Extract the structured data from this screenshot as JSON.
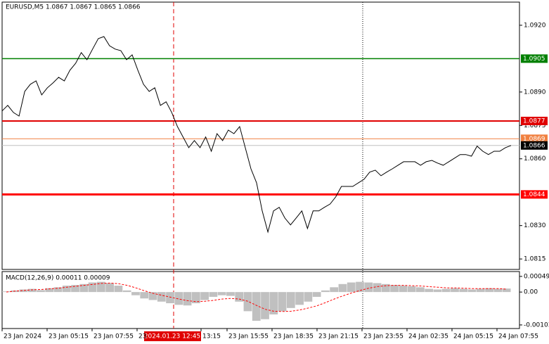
{
  "chart_data": {
    "type": "line",
    "title": "EURUSD,M5  1.0867 1.0867 1.0865 1.0866",
    "series": [
      {
        "name": "EURUSD",
        "color": "#000000",
        "values": [
          1.08815,
          1.0884,
          1.08808,
          1.08792,
          1.08903,
          1.08935,
          1.0895,
          1.08887,
          1.08919,
          1.08941,
          1.08966,
          1.0895,
          1.08998,
          1.09029,
          1.09077,
          1.09045,
          1.09093,
          1.0914,
          1.09149,
          1.09108,
          1.09093,
          1.09086,
          1.09045,
          1.09067,
          1.08998,
          1.08935,
          1.08903,
          1.08919,
          1.0884,
          1.08856,
          1.08808,
          1.08745,
          1.08698,
          1.0865,
          1.08682,
          1.0865,
          1.08698,
          1.08634,
          1.08713,
          1.08682,
          1.08729,
          1.08713,
          1.08745,
          1.0865,
          1.08555,
          1.08492,
          1.08366,
          1.08271,
          1.08366,
          1.08382,
          1.08334,
          1.08303,
          1.08334,
          1.08366,
          1.08287,
          1.08366,
          1.08366,
          1.08382,
          1.08397,
          1.08429,
          1.08476,
          1.08476,
          1.08476,
          1.08492,
          1.08508,
          1.0854,
          1.08549,
          1.08524,
          1.0854,
          1.08555,
          1.08571,
          1.08587,
          1.08587,
          1.08587,
          1.08571,
          1.08587,
          1.08593,
          1.08581,
          1.08571,
          1.08587,
          1.08603,
          1.08619,
          1.08619,
          1.08612,
          1.08657,
          1.08634,
          1.08619,
          1.08634,
          1.08634,
          1.0865,
          1.0866
        ]
      }
    ],
    "ylim": [
      1.08103,
      1.09304
    ],
    "yticks": [
      {
        "value": 1.092,
        "label": "1.0920"
      },
      {
        "value": 1.089,
        "label": "1.0890"
      },
      {
        "value": 1.0875,
        "label": "1.0875"
      },
      {
        "value": 1.086,
        "label": "1.0860"
      },
      {
        "value": 1.083,
        "label": "1.0830"
      },
      {
        "value": 1.0815,
        "label": "1.0815"
      }
    ],
    "levels": [
      {
        "value": 1.0905,
        "label": "1.0905",
        "color": "#008000"
      },
      {
        "value": 1.0877,
        "label": "1.0877",
        "color": "#e00000"
      },
      {
        "value": 1.0869,
        "label": "1.0869",
        "color": "#f08040"
      },
      {
        "value": 1.0844,
        "label": "1.0844",
        "color": "#ff0000"
      },
      {
        "value": 1.0866,
        "label": "1.0866",
        "color": "#000000"
      }
    ],
    "x_labels": [
      "23 Jan 2024",
      "23 Jan 05:15",
      "23 Jan 07:55",
      "23",
      "13:15",
      "23 Jan 15:55",
      "23 Jan 18:35",
      "23 Jan 21:15",
      "23 Jan 23:55",
      "24 Jan 02:35",
      "24 Jan 05:15",
      "24 Jan 07:55"
    ],
    "crosshair_label": "2024.01.23 12:45",
    "macd": {
      "title": "MACD(12,26,9) 0.00011 0.00009",
      "histogram": {
        "color": "#c0c0c0",
        "values": [
          2e-05,
          5e-05,
          8e-05,
          0.0001,
          6e-05,
          0.00012,
          0.00015,
          0.0002,
          0.00022,
          0.00025,
          0.0003,
          0.00032,
          0.00028,
          0.0002,
          5e-05,
          -0.0001,
          -0.0002,
          -0.00025,
          -0.0003,
          -0.00035,
          -0.0004,
          -0.00042,
          -0.00035,
          -0.00025,
          -0.00015,
          -0.0001,
          -0.00012,
          -0.0003,
          -0.0006,
          -0.0009,
          -0.00085,
          -0.0007,
          -0.0006,
          -0.0005,
          -0.0004,
          -0.0003,
          -0.00015,
          5e-05,
          0.00015,
          0.00025,
          0.0003,
          0.00032,
          0.0003,
          0.00028,
          0.00025,
          0.00022,
          0.0002,
          0.00018,
          0.00015,
          0.0001,
          8e-05,
          0.0001,
          0.00012,
          0.0001,
          8e-05,
          0.0001,
          0.00012,
          0.0001,
          0.00011
        ]
      },
      "signal": {
        "color": "#ff0000",
        "values": [
          0,
          3e-05,
          5e-05,
          7e-05,
          8e-05,
          0.0001,
          0.00012,
          0.00015,
          0.00018,
          0.00021,
          0.00024,
          0.00027,
          0.00028,
          0.00026,
          0.00021,
          0.00013,
          4e-05,
          -4e-05,
          -0.0001,
          -0.00016,
          -0.00022,
          -0.00027,
          -0.0003,
          -0.00029,
          -0.00026,
          -0.00022,
          -0.0002,
          -0.00022,
          -0.00029,
          -0.00042,
          -0.00054,
          -0.0006,
          -0.00061,
          -0.0006,
          -0.00056,
          -0.0005,
          -0.00043,
          -0.00033,
          -0.00022,
          -0.00012,
          -3e-05,
          5e-05,
          0.00012,
          0.00017,
          0.0002,
          0.00021,
          0.00021,
          0.0002,
          0.00019,
          0.00017,
          0.00015,
          0.00013,
          0.00013,
          0.00012,
          0.00011,
          0.00011,
          0.00011,
          0.00011,
          9e-05
        ]
      },
      "ylim": [
        -0.00112,
        0.00062
      ],
      "yticks": [
        0.00049,
        {
          "value": 0,
          "label": "0.00"
        },
        -0.00103
      ]
    }
  }
}
